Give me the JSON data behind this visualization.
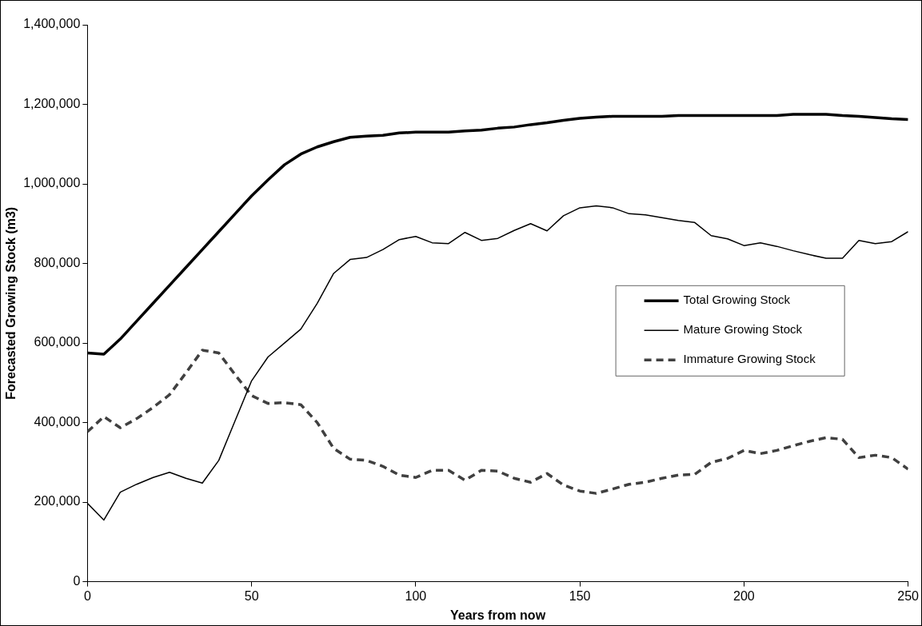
{
  "chart_data": {
    "type": "line",
    "xlabel": "Years from now",
    "ylabel": "Forecasted Growing Stock (m3)",
    "x": [
      0,
      5,
      10,
      15,
      20,
      25,
      30,
      35,
      40,
      45,
      50,
      55,
      60,
      65,
      70,
      75,
      80,
      85,
      90,
      95,
      100,
      105,
      110,
      115,
      120,
      125,
      130,
      135,
      140,
      145,
      150,
      155,
      160,
      165,
      170,
      175,
      180,
      185,
      190,
      195,
      200,
      205,
      210,
      215,
      220,
      225,
      230,
      235,
      240,
      245,
      250
    ],
    "xlim": [
      0,
      250
    ],
    "xticks": [
      0,
      50,
      100,
      150,
      200,
      250
    ],
    "ylim": [
      0,
      1400000
    ],
    "yticks": [
      {
        "value": 0,
        "label": "0"
      },
      {
        "value": 200000,
        "label": "200,000"
      },
      {
        "value": 400000,
        "label": "400,000"
      },
      {
        "value": 600000,
        "label": "600,000"
      },
      {
        "value": 800000,
        "label": "800,000"
      },
      {
        "value": 1000000,
        "label": "1,000,000"
      },
      {
        "value": 1200000,
        "label": "1,200,000"
      },
      {
        "value": 1400000,
        "label": "1,400,000"
      }
    ],
    "grid": false,
    "legend": "right",
    "marker": "none",
    "series": [
      {
        "name": "Total Growing Stock",
        "color": "#000000",
        "line_style": "solid",
        "values": [
          575000,
          572000,
          610000,
          655000,
          700000,
          745000,
          790000,
          835000,
          880000,
          925000,
          970000,
          1010000,
          1048000,
          1075000,
          1093000,
          1106000,
          1117000,
          1120000,
          1122000,
          1128000,
          1130000,
          1130000,
          1130000,
          1133000,
          1135000,
          1140000,
          1143000,
          1149000,
          1154000,
          1160000,
          1165000,
          1168000,
          1170000,
          1170000,
          1170000,
          1170000,
          1172000,
          1172000,
          1172000,
          1172000,
          1172000,
          1172000,
          1172000,
          1175000,
          1175000,
          1175000,
          1172000,
          1170000,
          1167000,
          1164000,
          1162000
        ]
      },
      {
        "name": "Mature Growing Stock",
        "color": "#000000",
        "line_style": "solid",
        "values": [
          197000,
          155000,
          225000,
          245000,
          262000,
          275000,
          260000,
          248000,
          305000,
          405000,
          505000,
          565000,
          600000,
          635000,
          700000,
          775000,
          810000,
          815000,
          835000,
          860000,
          868000,
          852000,
          850000,
          878000,
          858000,
          863000,
          883000,
          900000,
          882000,
          920000,
          940000,
          945000,
          940000,
          925000,
          922000,
          915000,
          908000,
          903000,
          870000,
          862000,
          845000,
          852000,
          843000,
          832000,
          822000,
          813000,
          813000,
          858000,
          850000,
          855000,
          880000
        ]
      },
      {
        "name": "Immature Growing Stock",
        "color": "#404040",
        "line_style": "dashed",
        "values": [
          377000,
          415000,
          387000,
          410000,
          438000,
          470000,
          525000,
          582000,
          575000,
          520000,
          468000,
          448000,
          450000,
          445000,
          400000,
          335000,
          308000,
          305000,
          290000,
          268000,
          262000,
          280000,
          280000,
          255000,
          280000,
          278000,
          260000,
          250000,
          272000,
          243000,
          228000,
          222000,
          233000,
          245000,
          250000,
          260000,
          268000,
          270000,
          300000,
          310000,
          330000,
          322000,
          330000,
          342000,
          353000,
          362000,
          358000,
          312000,
          318000,
          312000,
          283000
        ]
      }
    ]
  }
}
